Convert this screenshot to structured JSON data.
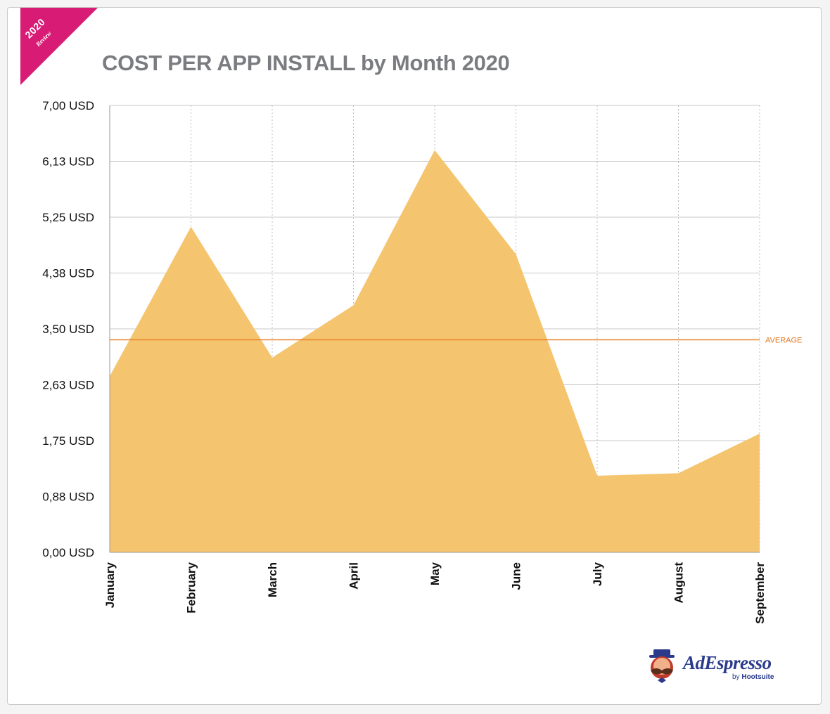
{
  "ribbon": {
    "year": "2020",
    "label": "Review",
    "color": "#d81b74"
  },
  "chart_data": {
    "type": "area",
    "title": "COST PER APP INSTALL by Month 2020",
    "xlabel": "",
    "ylabel": "",
    "categories": [
      "January",
      "February",
      "March",
      "April",
      "May",
      "June",
      "July",
      "August",
      "September"
    ],
    "series": [
      {
        "values": [
          2.76,
          5.1,
          3.05,
          3.87,
          6.3,
          4.67,
          1.2,
          1.24,
          1.86
        ],
        "color": "#f5c46e"
      }
    ],
    "ylim": [
      0,
      7
    ],
    "yticks": [
      0,
      0.875,
      1.75,
      2.625,
      3.5,
      4.375,
      5.25,
      6.125,
      7
    ],
    "ytick_labels": [
      "0,00 USD",
      "0,88 USD",
      "1,75 USD",
      "2,63 USD",
      "3,50 USD",
      "4,38 USD",
      "5,25 USD",
      "6,13 USD",
      "7,00 USD"
    ],
    "average": {
      "label": "AVERAGE",
      "value": 3.33,
      "color": "#e8832e"
    },
    "grid": {
      "horizontal": true,
      "vertical": "dotted"
    }
  },
  "logo": {
    "name": "AdEspresso",
    "by": "by",
    "parent": "Hootsuite"
  }
}
